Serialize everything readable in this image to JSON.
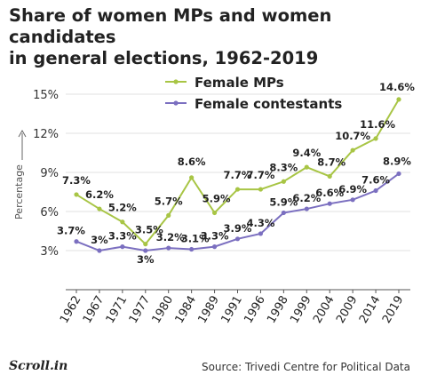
{
  "header": {
    "title_line1": "Share of women MPs and women candidates",
    "title_line2": "in general elections, 1962-2019"
  },
  "footer": {
    "logo": "Scroll.in",
    "source": "Source: Trivedi Centre for Political Data"
  },
  "chart_data": {
    "type": "line",
    "title": "Share of women MPs and women candidates in general elections, 1962-2019",
    "ylabel": "Percentage",
    "xlabel": "",
    "ylim": [
      0,
      15
    ],
    "yticks": [
      3,
      6,
      9,
      12,
      15
    ],
    "ytick_labels": [
      "3%",
      "6%",
      "9%",
      "12%",
      "15%"
    ],
    "grid": "horizontal",
    "legend_position": "top-right",
    "categories": [
      "1962",
      "1967",
      "1971",
      "1977",
      "1980",
      "1984",
      "1989",
      "1991",
      "1996",
      "1998",
      "1999",
      "2004",
      "2009",
      "2014",
      "2019"
    ],
    "series": [
      {
        "name": "Female MPs",
        "color": "#a8c545",
        "values": [
          7.3,
          6.2,
          5.2,
          3.5,
          5.7,
          8.6,
          5.9,
          7.7,
          7.7,
          8.3,
          9.4,
          8.7,
          10.7,
          11.6,
          14.6
        ],
        "labels": [
          "7.3%",
          "6.2%",
          "5.2%",
          "3.5%",
          "5.7%",
          "8.6%",
          "5.9%",
          "7.7%",
          "7.7%",
          "8.3%",
          "9.4%",
          "8.7%",
          "10.7%",
          "11.6%",
          "14.6%"
        ]
      },
      {
        "name": "Female contestants",
        "color": "#7b6fc0",
        "values": [
          3.7,
          3.0,
          3.3,
          3.0,
          3.2,
          3.1,
          3.3,
          3.9,
          4.3,
          5.9,
          6.2,
          6.6,
          6.9,
          7.6,
          8.9
        ],
        "labels": [
          "3.7%",
          "3%",
          "3.3%",
          "3%",
          "3.2%",
          "3.1%",
          "3.3%",
          "3.9%",
          "4.3%",
          "5.9%",
          "6.2%",
          "6.6%",
          "6.9%",
          "7.6%",
          "8.9%"
        ]
      }
    ]
  }
}
